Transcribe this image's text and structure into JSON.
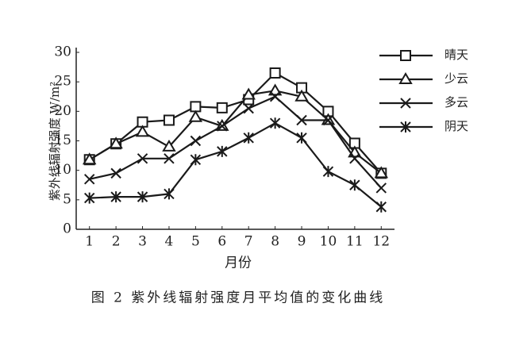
{
  "chart_data": {
    "type": "line",
    "caption": "图 2  紫外线辐射强度月平均值的变化曲线",
    "x_label": "月份",
    "y_label": "紫外线辐射强度 W/m²",
    "x": [
      1,
      2,
      3,
      4,
      5,
      6,
      7,
      8,
      9,
      10,
      11,
      12
    ],
    "xlim": [
      0.5,
      12.5
    ],
    "xticks": [
      1,
      2,
      3,
      4,
      5,
      6,
      7,
      8,
      9,
      10,
      11,
      12
    ],
    "ylim": [
      0,
      30
    ],
    "yticks": [
      0,
      5,
      10,
      15,
      20,
      25,
      30
    ],
    "legend": "upper right",
    "series": [
      {
        "name": "晴天",
        "color": "#1a1a1a",
        "marker": "square",
        "values": [
          11.8,
          14.5,
          18.2,
          18.5,
          20.8,
          20.6,
          22,
          26.5,
          24,
          20,
          14.6,
          9.5
        ]
      },
      {
        "name": "少云",
        "color": "#1a1a1a",
        "marker": "triangle",
        "values": [
          11.8,
          14.5,
          16.5,
          14,
          19,
          17.5,
          22.8,
          23.5,
          22.5,
          18.5,
          13,
          9.5
        ]
      },
      {
        "name": "多云",
        "color": "#1a1a1a",
        "marker": "x",
        "values": [
          8.5,
          9.5,
          12,
          12,
          15,
          17.5,
          20.5,
          22.5,
          18.5,
          18.5,
          12,
          7
        ]
      },
      {
        "name": "阴天",
        "color": "#1a1a1a",
        "marker": "asterisk",
        "values": [
          5.3,
          5.5,
          5.5,
          6,
          11.8,
          13.2,
          15.5,
          18,
          15.5,
          9.8,
          7.5,
          3.8
        ]
      }
    ]
  }
}
